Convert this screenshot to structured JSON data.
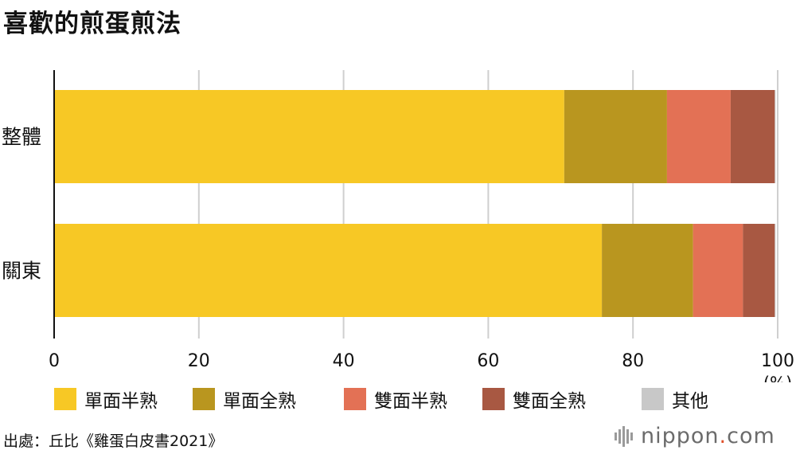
{
  "title": "喜歡的煎蛋煎法",
  "source": "出處：丘比《雞蛋白皮書2021》",
  "logo": {
    "text": "nippon",
    "dot": ".",
    "suffix": "com"
  },
  "chart_data": {
    "type": "bar",
    "orientation": "horizontal",
    "stacked": true,
    "title": "喜歡的煎蛋煎法",
    "categories": [
      "整體",
      "關東"
    ],
    "series": [
      {
        "name": "單面半熟",
        "color": "#f7c825",
        "values": [
          70.5,
          75.7
        ]
      },
      {
        "name": "單面全熟",
        "color": "#b9961f",
        "values": [
          14.2,
          12.6
        ]
      },
      {
        "name": "雙面半熟",
        "color": "#e37155",
        "values": [
          8.8,
          6.9
        ]
      },
      {
        "name": "雙面全熟",
        "color": "#a85842",
        "values": [
          6.1,
          4.4
        ]
      },
      {
        "name": "其他",
        "color": "#c8c8c8",
        "values": [
          0.1,
          0.1
        ]
      }
    ],
    "xlim": [
      0,
      100
    ],
    "xticks": [
      "0",
      "20",
      "40",
      "60",
      "80",
      "100"
    ],
    "x_unit": "(%)",
    "grid": true,
    "legend_position": "bottom"
  }
}
